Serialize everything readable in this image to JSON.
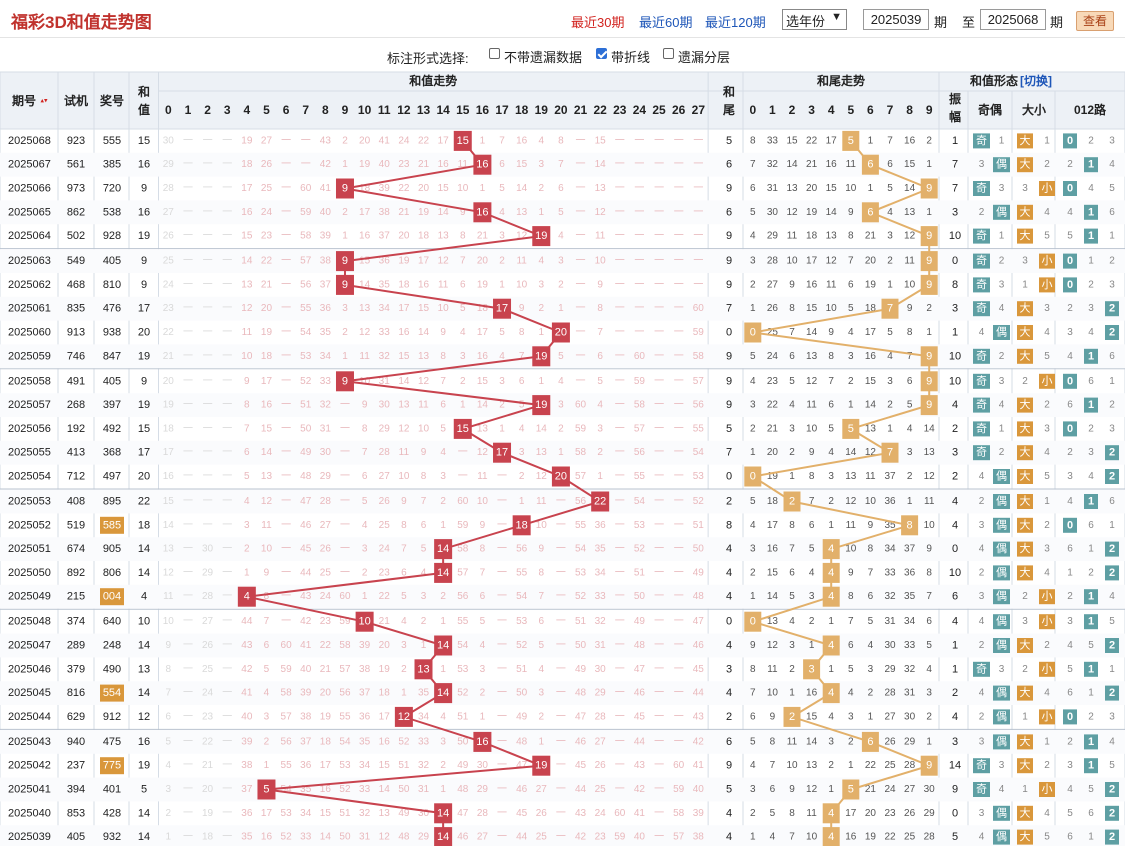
{
  "header": {
    "title": "福彩3D和值走势图",
    "periods": [
      "最近30期",
      "最近60期",
      "最近120期"
    ],
    "active_period": "最近30期",
    "year_select": "选年份",
    "from_value": "2025039",
    "from_unit": "期",
    "to_label": "至",
    "to_value": "2025068",
    "to_unit": "期",
    "query_button": "查看"
  },
  "mode": {
    "label": "标注形式选择:",
    "options": [
      {
        "label": "不带遗漏数据",
        "checked": false
      },
      {
        "label": "带折线",
        "checked": true
      },
      {
        "label": "遗漏分层",
        "checked": false
      }
    ]
  },
  "table": {
    "col_period": "期号",
    "col_test": "试机",
    "col_prize": "奖号",
    "col_sum": "和值",
    "group_sum": "和值走势",
    "col_tail": "和尾",
    "group_tail": "和尾走势",
    "group_form": "和值形态",
    "switch_label": "[切换]",
    "col_amp": "振幅",
    "col_oe": "奇偶",
    "col_bs": "大小",
    "col_012": "012路",
    "sum_numbers": [
      "0",
      "1",
      "2",
      "3",
      "4",
      "5",
      "6",
      "7",
      "8",
      "9",
      "10",
      "11",
      "12",
      "13",
      "14",
      "15",
      "16",
      "17",
      "18",
      "19",
      "20",
      "21",
      "22",
      "23",
      "24",
      "25",
      "26",
      "27"
    ],
    "tail_numbers": [
      "0",
      "1",
      "2",
      "3",
      "4",
      "5",
      "6",
      "7",
      "8",
      "9"
    ],
    "label_odd": "奇",
    "label_even": "偶",
    "label_big": "大",
    "label_small": "小"
  },
  "rows": [
    {
      "p": "2025068",
      "t": "923",
      "n": "555",
      "s": 15,
      "tl": 5,
      "a": "1",
      "hl": false
    },
    {
      "p": "2025067",
      "t": "561",
      "n": "385",
      "s": 16,
      "tl": 6,
      "a": "7",
      "hl": false
    },
    {
      "p": "2025066",
      "t": "973",
      "n": "720",
      "s": 9,
      "tl": 9,
      "a": "7",
      "hl": false
    },
    {
      "p": "2025065",
      "t": "862",
      "n": "538",
      "s": 16,
      "tl": 6,
      "a": "3",
      "hl": false
    },
    {
      "p": "2025064",
      "t": "502",
      "n": "928",
      "s": 19,
      "tl": 9,
      "a": "10",
      "hl": false
    },
    {
      "p": "2025063",
      "t": "549",
      "n": "405",
      "s": 9,
      "tl": 9,
      "a": "0",
      "hl": false
    },
    {
      "p": "2025062",
      "t": "468",
      "n": "810",
      "s": 9,
      "tl": 9,
      "a": "8",
      "hl": false
    },
    {
      "p": "2025061",
      "t": "835",
      "n": "476",
      "s": 17,
      "tl": 7,
      "a": "3",
      "hl": false
    },
    {
      "p": "2025060",
      "t": "913",
      "n": "938",
      "s": 20,
      "tl": 0,
      "a": "1",
      "hl": false
    },
    {
      "p": "2025059",
      "t": "746",
      "n": "847",
      "s": 19,
      "tl": 9,
      "a": "10",
      "hl": false
    },
    {
      "p": "2025058",
      "t": "491",
      "n": "405",
      "s": 9,
      "tl": 9,
      "a": "10",
      "hl": false
    },
    {
      "p": "2025057",
      "t": "268",
      "n": "397",
      "s": 19,
      "tl": 9,
      "a": "4",
      "hl": false
    },
    {
      "p": "2025056",
      "t": "192",
      "n": "492",
      "s": 15,
      "tl": 5,
      "a": "2",
      "hl": false
    },
    {
      "p": "2025055",
      "t": "413",
      "n": "368",
      "s": 17,
      "tl": 7,
      "a": "3",
      "hl": false
    },
    {
      "p": "2025054",
      "t": "712",
      "n": "497",
      "s": 20,
      "tl": 0,
      "a": "2",
      "hl": false
    },
    {
      "p": "2025053",
      "t": "408",
      "n": "895",
      "s": 22,
      "tl": 2,
      "a": "4",
      "hl": false
    },
    {
      "p": "2025052",
      "t": "519",
      "n": "585",
      "s": 18,
      "tl": 8,
      "a": "4",
      "hl": true
    },
    {
      "p": "2025051",
      "t": "674",
      "n": "905",
      "s": 14,
      "tl": 4,
      "a": "0",
      "hl": false
    },
    {
      "p": "2025050",
      "t": "892",
      "n": "806",
      "s": 14,
      "tl": 4,
      "a": "10",
      "hl": false
    },
    {
      "p": "2025049",
      "t": "215",
      "n": "004",
      "s": 4,
      "tl": 4,
      "a": "6",
      "hl": true
    },
    {
      "p": "2025048",
      "t": "374",
      "n": "640",
      "s": 10,
      "tl": 0,
      "a": "4",
      "hl": false
    },
    {
      "p": "2025047",
      "t": "289",
      "n": "248",
      "s": 14,
      "tl": 4,
      "a": "1",
      "hl": false
    },
    {
      "p": "2025046",
      "t": "379",
      "n": "490",
      "s": 13,
      "tl": 3,
      "a": "1",
      "hl": false
    },
    {
      "p": "2025045",
      "t": "816",
      "n": "554",
      "s": 14,
      "tl": 4,
      "a": "2",
      "hl": true
    },
    {
      "p": "2025044",
      "t": "629",
      "n": "912",
      "s": 12,
      "tl": 2,
      "a": "4",
      "hl": false
    },
    {
      "p": "2025043",
      "t": "940",
      "n": "475",
      "s": 16,
      "tl": 6,
      "a": "3",
      "hl": false
    },
    {
      "p": "2025042",
      "t": "237",
      "n": "775",
      "s": 19,
      "tl": 9,
      "a": "14",
      "hl": true
    },
    {
      "p": "2025041",
      "t": "394",
      "n": "401",
      "s": 5,
      "tl": 5,
      "a": "9",
      "hl": false
    },
    {
      "p": "2025040",
      "t": "853",
      "n": "428",
      "s": 14,
      "tl": 4,
      "a": "0",
      "hl": false
    },
    {
      "p": "2025039",
      "t": "405",
      "n": "932",
      "s": 14,
      "tl": 4,
      "a": "5",
      "hl": false
    }
  ],
  "colors": {
    "sum_ball": "#c8434e",
    "tail_ball": "#e2b06a",
    "sum_line": "#c8434e",
    "tail_line": "#e2b06a",
    "teal": "#5e9fa3",
    "orange": "#d9973b",
    "miss_text": "#e9b8bc",
    "header_bg": "#edf1f6",
    "grid_line": "#d6dde6"
  }
}
